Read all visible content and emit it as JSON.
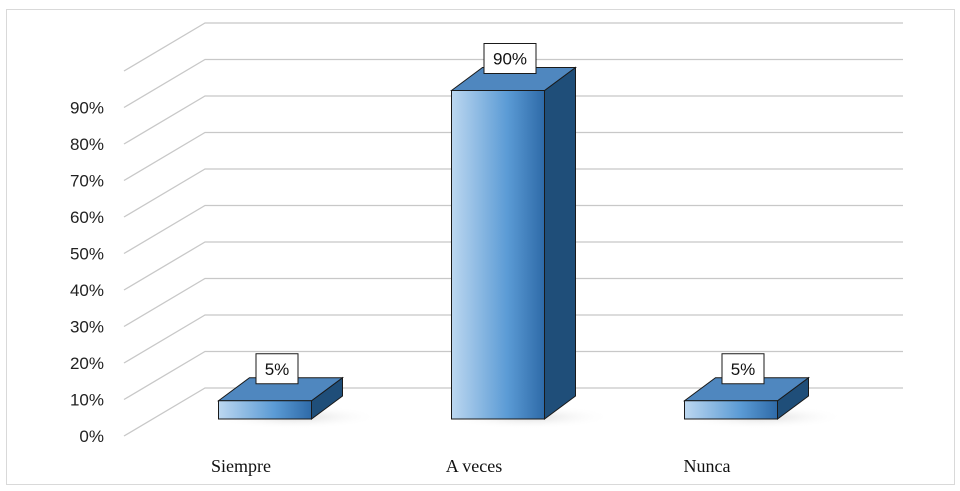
{
  "chart_data": {
    "type": "bar",
    "style": "3d-column",
    "categories": [
      "Siempre",
      "A veces",
      "Nunca"
    ],
    "values": [
      5,
      90,
      5
    ],
    "data_labels": [
      "5%",
      "90%",
      "5%"
    ],
    "ylim": [
      0,
      100
    ],
    "y_ticks": [
      0,
      10,
      20,
      30,
      40,
      50,
      60,
      70,
      80,
      90
    ],
    "y_tick_labels": [
      "0%",
      "10%",
      "20%",
      "30%",
      "40%",
      "50%",
      "60%",
      "70%",
      "80%",
      "90%"
    ],
    "grid": true,
    "legend": "none",
    "colors": {
      "bar_front_light": "#bcd7f0",
      "bar_front_mid": "#5b9bd5",
      "bar_front_dark": "#2e6aa8",
      "bar_top": "#4f87bf",
      "bar_side": "#1f4e79",
      "outline": "#1a1a1a",
      "grid": "#c8c8c8"
    }
  }
}
